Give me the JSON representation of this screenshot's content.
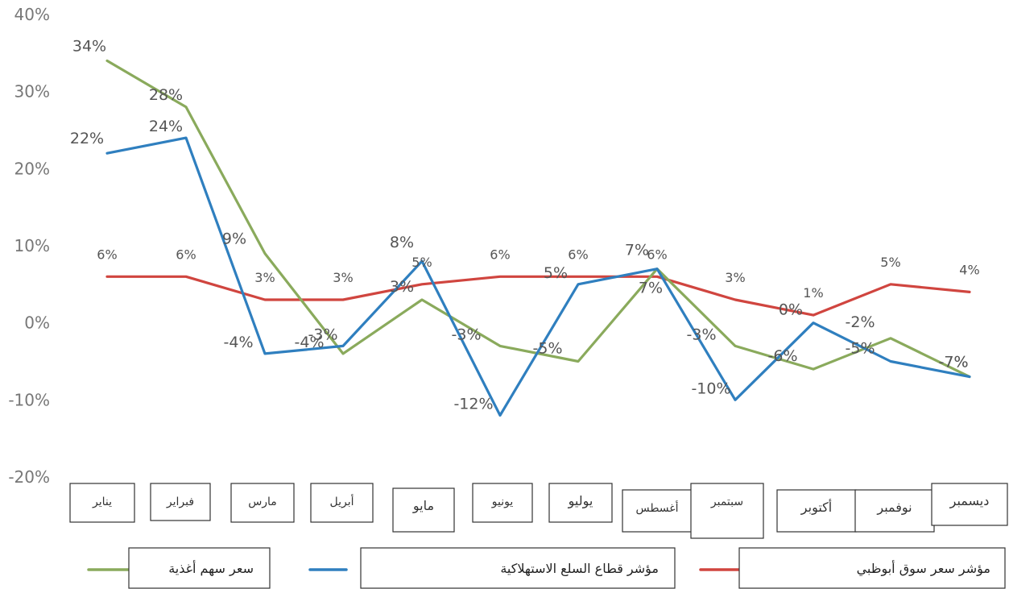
{
  "chart_data": {
    "type": "line",
    "categories": [
      "يناير",
      "فبراير",
      "مارس",
      "أبريل",
      "مايو",
      "يونيو",
      "يوليو",
      "أغسطس",
      "سبتمبر",
      "أكتوبر",
      "نوفمبر",
      "ديسمبر"
    ],
    "y_ticks": [
      "40%",
      "30%",
      "20%",
      "10%",
      "0%",
      "-10%",
      "-20%"
    ],
    "ylim": [
      -20,
      40
    ],
    "y_unit": "%",
    "grid": false,
    "legend_position": "bottom",
    "series": [
      {
        "name": "سعر سهم أغذية",
        "color": "#8aaa5c",
        "values": [
          34,
          28,
          9,
          -4,
          3,
          -3,
          -5,
          7,
          -3,
          -6,
          -2,
          -7
        ],
        "labels": [
          "34%",
          "28%",
          "9%",
          "-4%",
          "3%",
          "-3%",
          "-5%",
          "7%",
          "-3%",
          "-6%",
          "-2%",
          "-7%"
        ]
      },
      {
        "name": "مؤشر قطاع السلع الاستهلاكية",
        "color": "#2f7fbf",
        "values": [
          22,
          24,
          -4,
          -3,
          8,
          -12,
          5,
          7,
          -10,
          0,
          -5,
          -7
        ],
        "labels": [
          "22%",
          "24%",
          "-4%",
          "-3%",
          "8%",
          "-12%",
          "5%",
          "7%",
          "-10%",
          "0%",
          "-5%",
          "-7%"
        ]
      },
      {
        "name": "مؤشر سعر سوق أبوظبي",
        "color": "#d0453f",
        "values": [
          6,
          6,
          3,
          3,
          5,
          6,
          6,
          6,
          3,
          1,
          5,
          4
        ],
        "labels": [
          "6%",
          "6%",
          "3%",
          "3%",
          "5%",
          "6%",
          "6%",
          "6%",
          "3%",
          "1%",
          "5%",
          "4%"
        ]
      }
    ]
  }
}
